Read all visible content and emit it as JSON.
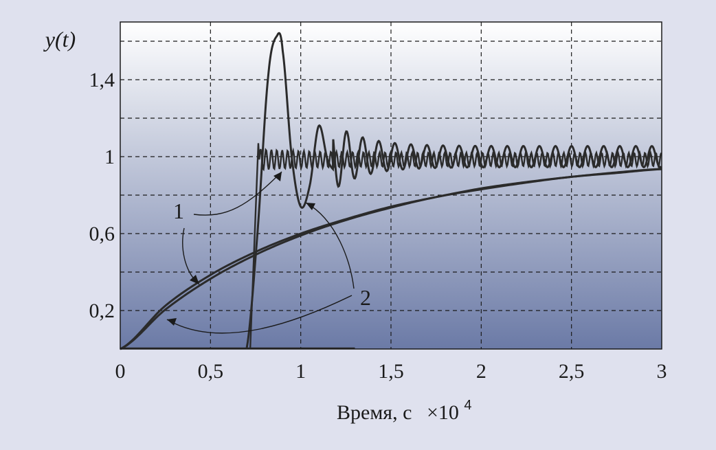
{
  "chart_data": {
    "type": "line",
    "title": "",
    "ylabel": "y(t)",
    "xlabel": "Время, с",
    "x_multiplier": "×10",
    "x_multiplier_exp": "4",
    "xlim": [
      0,
      3
    ],
    "ylim": [
      0,
      1.7
    ],
    "x_ticks": [
      0,
      0.5,
      1,
      1.5,
      2,
      2.5,
      3
    ],
    "x_tick_labels": [
      "0",
      "0,5",
      "1",
      "1,5",
      "2",
      "2,5",
      "3"
    ],
    "y_ticks": [
      0.2,
      0.6,
      1,
      1.4
    ],
    "y_tick_labels": [
      "0,2",
      "0,6",
      "1",
      "1,4"
    ],
    "y_gridlines": [
      0.2,
      0.4,
      0.6,
      0.8,
      1.0,
      1.2,
      1.4,
      1.6
    ],
    "grid": true,
    "colors": {
      "plot_top": "#ffffff",
      "plot_bottom": "#6b7aa6",
      "background": "#dfe1ee",
      "line": "#2b2b2b"
    },
    "series": [
      {
        "x": [
          0,
          0.25,
          0.5,
          0.75,
          1,
          1.25,
          1.5,
          1.75,
          2,
          2.25,
          2.5,
          2.75,
          3
        ],
        "y": [
          0,
          0.205,
          0.365,
          0.49,
          0.59,
          0.67,
          0.735,
          0.79,
          0.83,
          0.865,
          0.895,
          0.915,
          0.935
        ]
      },
      {
        "x": [
          0,
          0.25,
          0.5,
          0.75,
          1,
          1.25,
          1.5,
          1.75,
          2,
          2.25,
          2.5,
          2.75,
          3
        ],
        "y": [
          0,
          0.225,
          0.385,
          0.505,
          0.6,
          0.675,
          0.74,
          0.79,
          0.835,
          0.868,
          0.895,
          0.918,
          0.936
        ]
      },
      {
        "x": [
          0.72,
          0.76,
          0.78,
          0.8,
          0.85,
          0.9,
          0.95,
          1,
          1.05,
          1.1,
          1.2,
          1.3,
          3
        ],
        "y": [
          0,
          1.07,
          0.95,
          1.03,
          0.97,
          1.02,
          0.98,
          1.01,
          0.98,
          1.02,
          0.98,
          1.02,
          1.0
        ]
      },
      {
        "x": [
          0.7,
          0.76,
          0.82,
          0.87,
          0.9,
          0.95,
          1,
          1.05,
          1.1,
          1.15,
          1.2,
          1.3,
          1.5,
          2,
          3
        ],
        "y": [
          0,
          0.6,
          1.42,
          1.63,
          1.55,
          1.0,
          0.74,
          0.85,
          1.16,
          0.98,
          0.92,
          1.08,
          0.95,
          1.05,
          1.0
        ]
      }
    ],
    "annotations": [
      {
        "label": "1",
        "points_to": "curves 1"
      },
      {
        "label": "2",
        "points_to": "curves 2"
      }
    ]
  }
}
